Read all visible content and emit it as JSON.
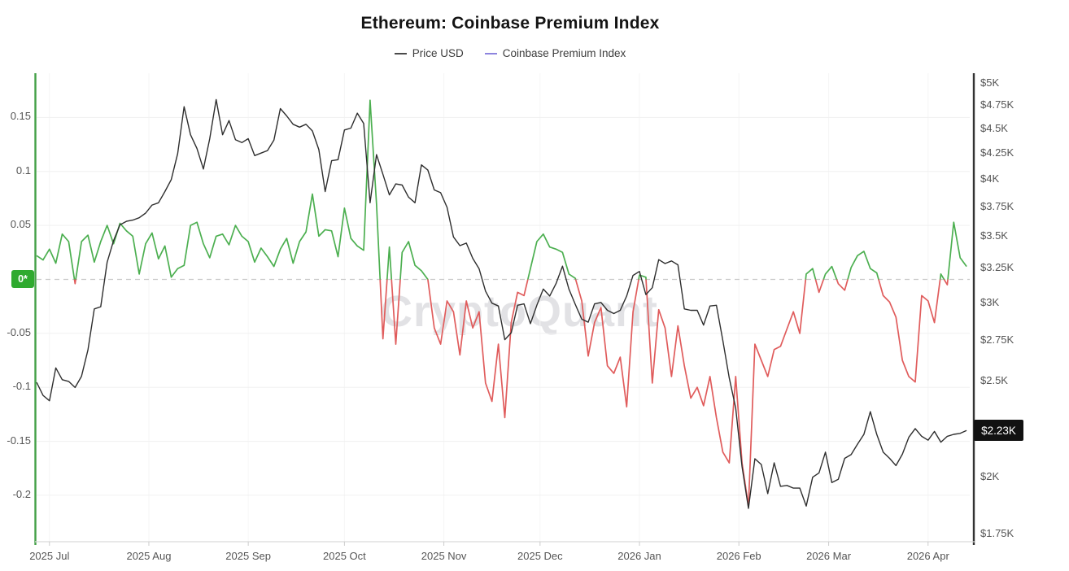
{
  "title": "Ethereum: Coinbase Premium Index",
  "legend": [
    {
      "label": "Price USD",
      "color": "#4a4a4a"
    },
    {
      "label": "Coinbase Premium Index",
      "color": "#8d84de"
    }
  ],
  "watermark": "CryptoQuant",
  "badges": {
    "left_zero": {
      "label": "0*",
      "color": "#2faa2f"
    },
    "last_price": {
      "label": "$2.23K",
      "color": "#111111"
    }
  },
  "colors": {
    "price_line": "#2e2e2e",
    "premium_positive": "#4caf50",
    "premium_negative": "#e05c5c",
    "left_axis_line": "#43a047",
    "right_axis_line": "#333333",
    "bottom_axis_line": "#d9d9d9",
    "gridline": "#f0f0f0",
    "zero_dashed_line": "#c9c9c9",
    "tick_text": "#555555"
  },
  "chart_data": {
    "type": "line",
    "title": "Ethereum: Coinbase Premium Index",
    "legend_position": "top-center",
    "grid": true,
    "x": {
      "start_date": "2025-06-27",
      "step_days": 2,
      "day_span": 291,
      "month_ticks": [
        {
          "day": 4,
          "label": "2025 Jul"
        },
        {
          "day": 35,
          "label": "2025 Aug"
        },
        {
          "day": 66,
          "label": "2025 Sep"
        },
        {
          "day": 96,
          "label": "2025 Oct"
        },
        {
          "day": 127,
          "label": "2025 Nov"
        },
        {
          "day": 157,
          "label": "2025 Dec"
        },
        {
          "day": 188,
          "label": "2026 Jan"
        },
        {
          "day": 219,
          "label": "2026 Feb"
        },
        {
          "day": 247,
          "label": "2026 Mar"
        },
        {
          "day": 278,
          "label": "2026 Apr"
        }
      ]
    },
    "left_axis": {
      "name": "Coinbase Premium Index",
      "scale": "linear",
      "min": -0.243,
      "max": 0.191,
      "ticks": [
        0.15,
        0.1,
        0.05,
        -0.05,
        -0.1,
        -0.15,
        -0.2
      ],
      "zero_line": {
        "style": "dashed",
        "badge": "0*"
      }
    },
    "right_axis": {
      "name": "Price USD",
      "scale": "log",
      "min": 1721,
      "max": 5125,
      "ticks": [
        {
          "value": 5000,
          "label": "$5K"
        },
        {
          "value": 4750,
          "label": "$4.75K"
        },
        {
          "value": 4500,
          "label": "$4.5K"
        },
        {
          "value": 4250,
          "label": "$4.25K"
        },
        {
          "value": 4000,
          "label": "$4K"
        },
        {
          "value": 3750,
          "label": "$3.75K"
        },
        {
          "value": 3500,
          "label": "$3.5K"
        },
        {
          "value": 3250,
          "label": "$3.25K"
        },
        {
          "value": 3000,
          "label": "$3K"
        },
        {
          "value": 2750,
          "label": "$2.75K"
        },
        {
          "value": 2500,
          "label": "$2.5K"
        },
        {
          "value": 2000,
          "label": "$2K"
        },
        {
          "value": 1750,
          "label": "$1.75K"
        }
      ],
      "last_value_badge": {
        "value": 2230,
        "label": "$2.23K"
      }
    },
    "series": [
      {
        "name": "Price USD",
        "axis": "right",
        "color": "#2e2e2e",
        "values": [
          2495,
          2420,
          2390,
          2580,
          2510,
          2500,
          2465,
          2530,
          2690,
          2960,
          2975,
          3300,
          3470,
          3600,
          3630,
          3640,
          3660,
          3700,
          3770,
          3790,
          3890,
          4000,
          4250,
          4740,
          4440,
          4300,
          4100,
          4400,
          4820,
          4440,
          4590,
          4390,
          4360,
          4400,
          4230,
          4255,
          4280,
          4385,
          4720,
          4640,
          4550,
          4520,
          4550,
          4480,
          4290,
          3890,
          4180,
          4190,
          4490,
          4510,
          4670,
          4560,
          3790,
          4240,
          4050,
          3860,
          3960,
          3950,
          3840,
          3790,
          4140,
          4090,
          3905,
          3880,
          3750,
          3500,
          3430,
          3450,
          3330,
          3250,
          3085,
          3000,
          2980,
          2755,
          2800,
          2985,
          2995,
          2860,
          2985,
          3100,
          3050,
          3140,
          3270,
          3100,
          2990,
          2890,
          2870,
          2995,
          3005,
          2950,
          2928,
          2950,
          3050,
          3200,
          3230,
          3060,
          3110,
          3320,
          3290,
          3310,
          3280,
          2960,
          2950,
          2950,
          2850,
          2980,
          2985,
          2750,
          2520,
          2350,
          2050,
          1860,
          2088,
          2060,
          1925,
          2068,
          1958,
          1962,
          1950,
          1950,
          1870,
          2000,
          2020,
          2120,
          1975,
          1990,
          2090,
          2108,
          2160,
          2210,
          2330,
          2210,
          2120,
          2090,
          2055,
          2110,
          2195,
          2240,
          2200,
          2180,
          2225,
          2170,
          2200,
          2210,
          2215,
          2230
        ]
      },
      {
        "name": "Coinbase Premium Index",
        "axis": "left",
        "color_positive": "#4caf50",
        "color_negative": "#e05c5c",
        "values": [
          0.022,
          0.018,
          0.028,
          0.015,
          0.042,
          0.035,
          -0.004,
          0.035,
          0.041,
          0.016,
          0.035,
          0.05,
          0.033,
          0.052,
          0.045,
          0.04,
          0.005,
          0.033,
          0.043,
          0.019,
          0.031,
          0.002,
          0.01,
          0.013,
          0.05,
          0.053,
          0.033,
          0.02,
          0.04,
          0.042,
          0.032,
          0.05,
          0.04,
          0.035,
          0.016,
          0.029,
          0.021,
          0.012,
          0.028,
          0.038,
          0.015,
          0.035,
          0.044,
          0.079,
          0.04,
          0.046,
          0.045,
          0.021,
          0.066,
          0.038,
          0.031,
          0.027,
          0.166,
          0.07,
          -0.055,
          0.03,
          -0.06,
          0.025,
          0.035,
          0.013,
          0.008,
          0.0,
          -0.045,
          -0.06,
          -0.02,
          -0.03,
          -0.07,
          -0.02,
          -0.045,
          -0.03,
          -0.096,
          -0.113,
          -0.06,
          -0.128,
          -0.04,
          -0.012,
          -0.015,
          0.01,
          0.035,
          0.042,
          0.03,
          0.028,
          0.025,
          0.005,
          0.001,
          -0.02,
          -0.071,
          -0.04,
          -0.026,
          -0.08,
          -0.087,
          -0.072,
          -0.118,
          -0.03,
          0.004,
          0.002,
          -0.096,
          -0.028,
          -0.045,
          -0.09,
          -0.043,
          -0.08,
          -0.11,
          -0.1,
          -0.117,
          -0.09,
          -0.128,
          -0.16,
          -0.17,
          -0.09,
          -0.17,
          -0.21,
          -0.06,
          -0.075,
          -0.09,
          -0.065,
          -0.062,
          -0.046,
          -0.03,
          -0.05,
          0.005,
          0.01,
          -0.012,
          0.005,
          0.012,
          -0.004,
          -0.01,
          0.011,
          0.022,
          0.026,
          0.01,
          0.006,
          -0.015,
          -0.021,
          -0.035,
          -0.075,
          -0.09,
          -0.095,
          -0.015,
          -0.02,
          -0.04,
          0.005,
          -0.005,
          0.053,
          0.02,
          0.012
        ]
      }
    ]
  }
}
